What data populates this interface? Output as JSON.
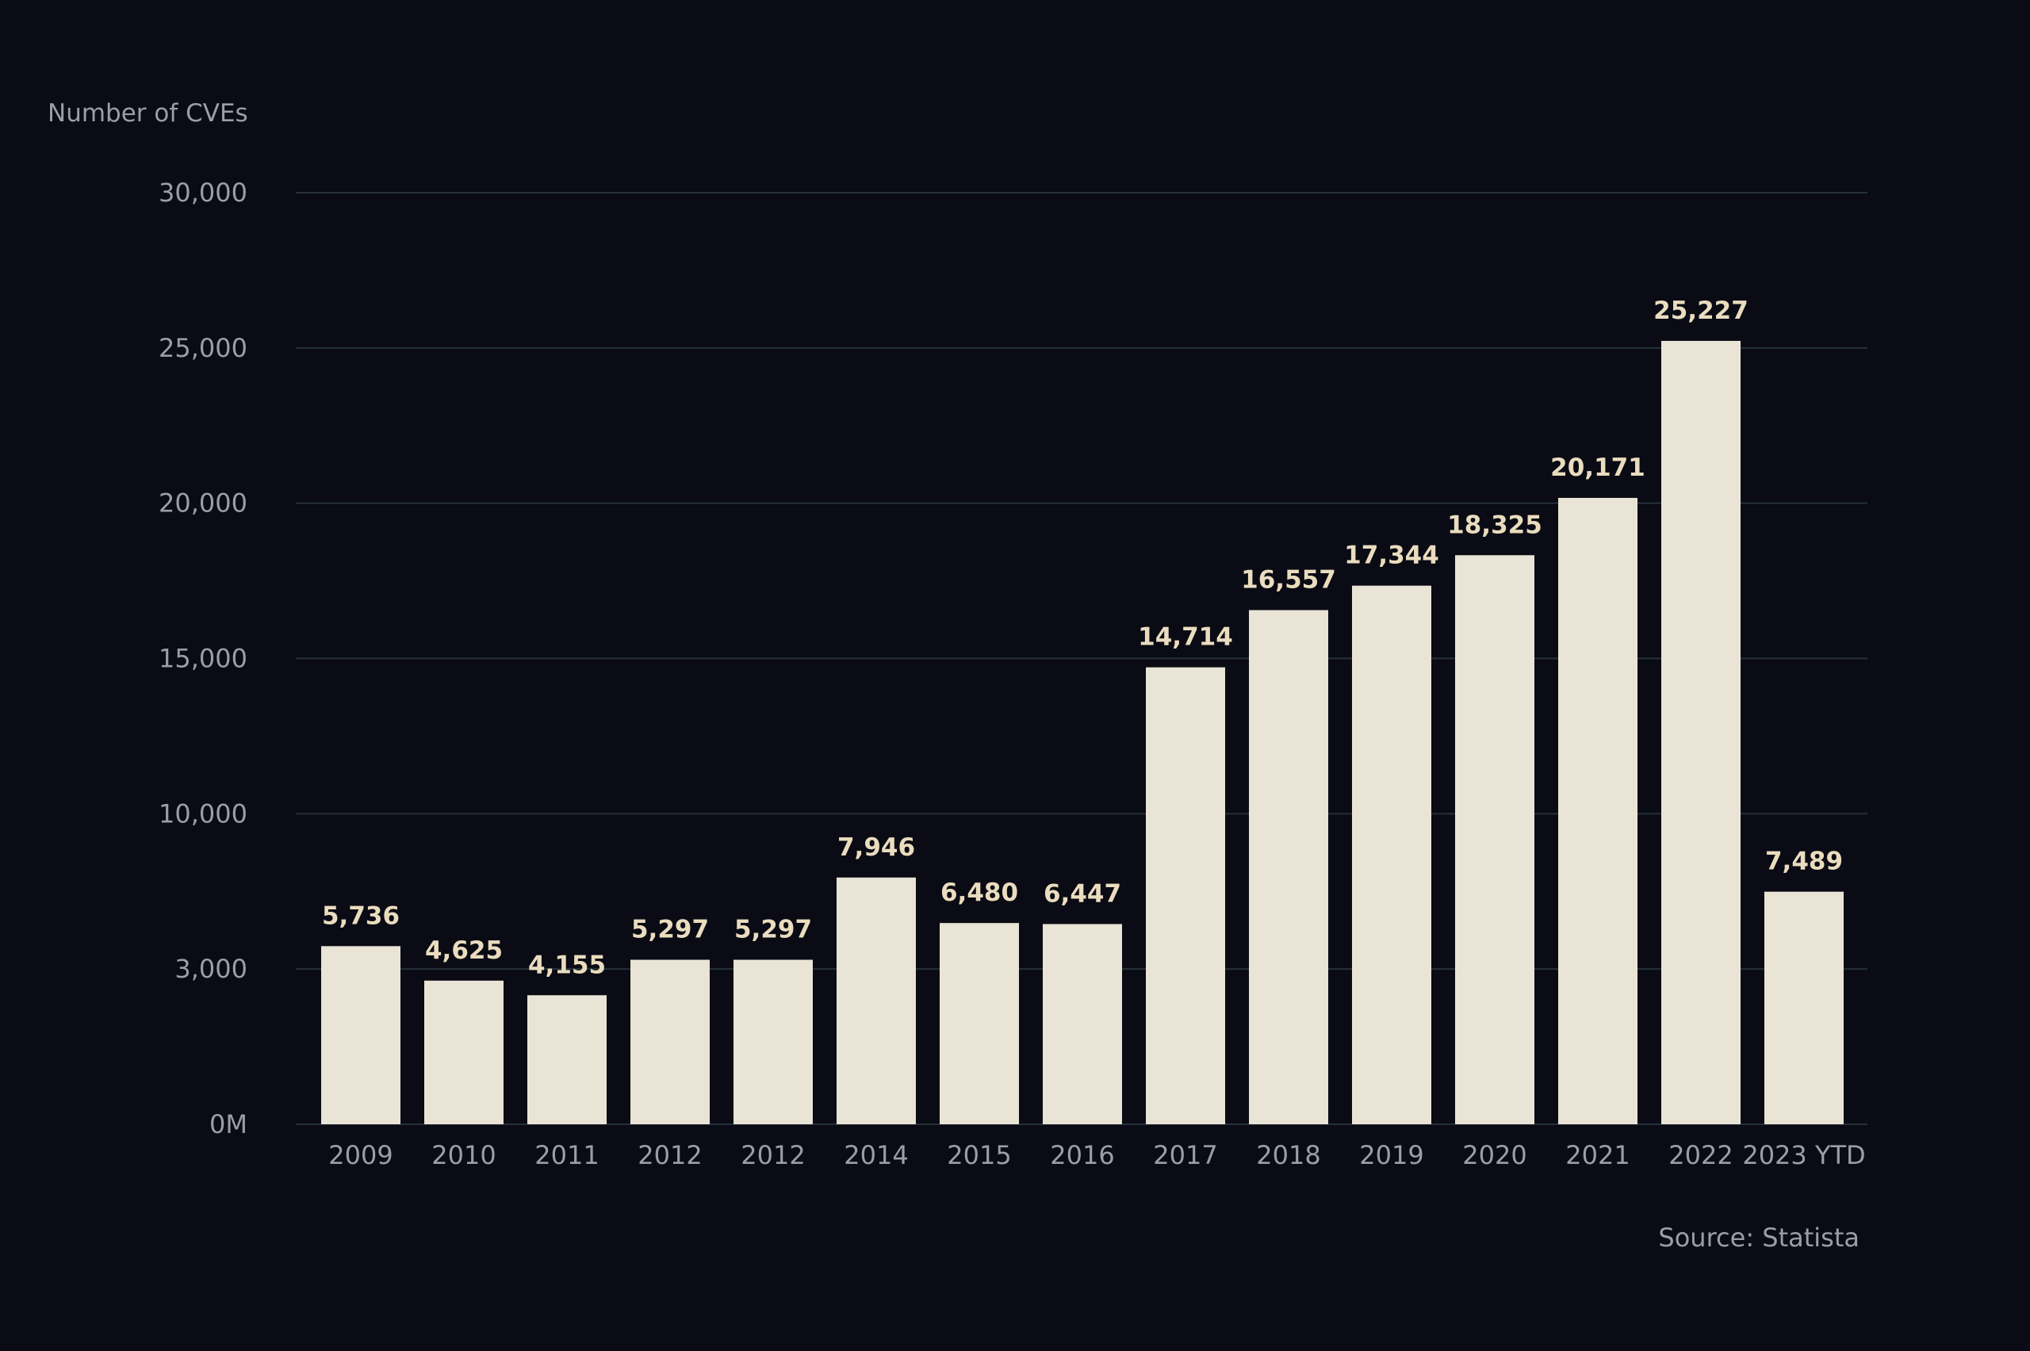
{
  "chart_data": {
    "type": "bar",
    "ylabel": "Number of CVEs",
    "categories": [
      "2009",
      "2010",
      "2011",
      "2012",
      "2012",
      "2014",
      "2015",
      "2016",
      "2017",
      "2018",
      "2019",
      "2020",
      "2021",
      "2022",
      "2023 YTD"
    ],
    "values": [
      5736,
      4625,
      4155,
      5297,
      5297,
      7946,
      6480,
      6447,
      14714,
      16557,
      17344,
      18325,
      20171,
      25227,
      7489
    ],
    "data_labels": [
      "5,736",
      "4,625",
      "4,155",
      "5,297",
      "5,297",
      "7,946",
      "6,480",
      "6,447",
      "14,714",
      "16,557",
      "17,344",
      "18,325",
      "20,171",
      "25,227",
      "7,489"
    ],
    "yticks": [
      "0M",
      "3,000",
      "10,000",
      "15,000",
      "20,000",
      "25,000",
      "30,000"
    ],
    "ylim": [
      0,
      30000
    ],
    "grid": true,
    "source": "Source: Statista",
    "colors": {
      "background": "#0a0b14",
      "bar": "#e9e4d6",
      "data_label": "#eadcbe",
      "text": "#9a9ea8",
      "grid": "#26303a"
    }
  }
}
